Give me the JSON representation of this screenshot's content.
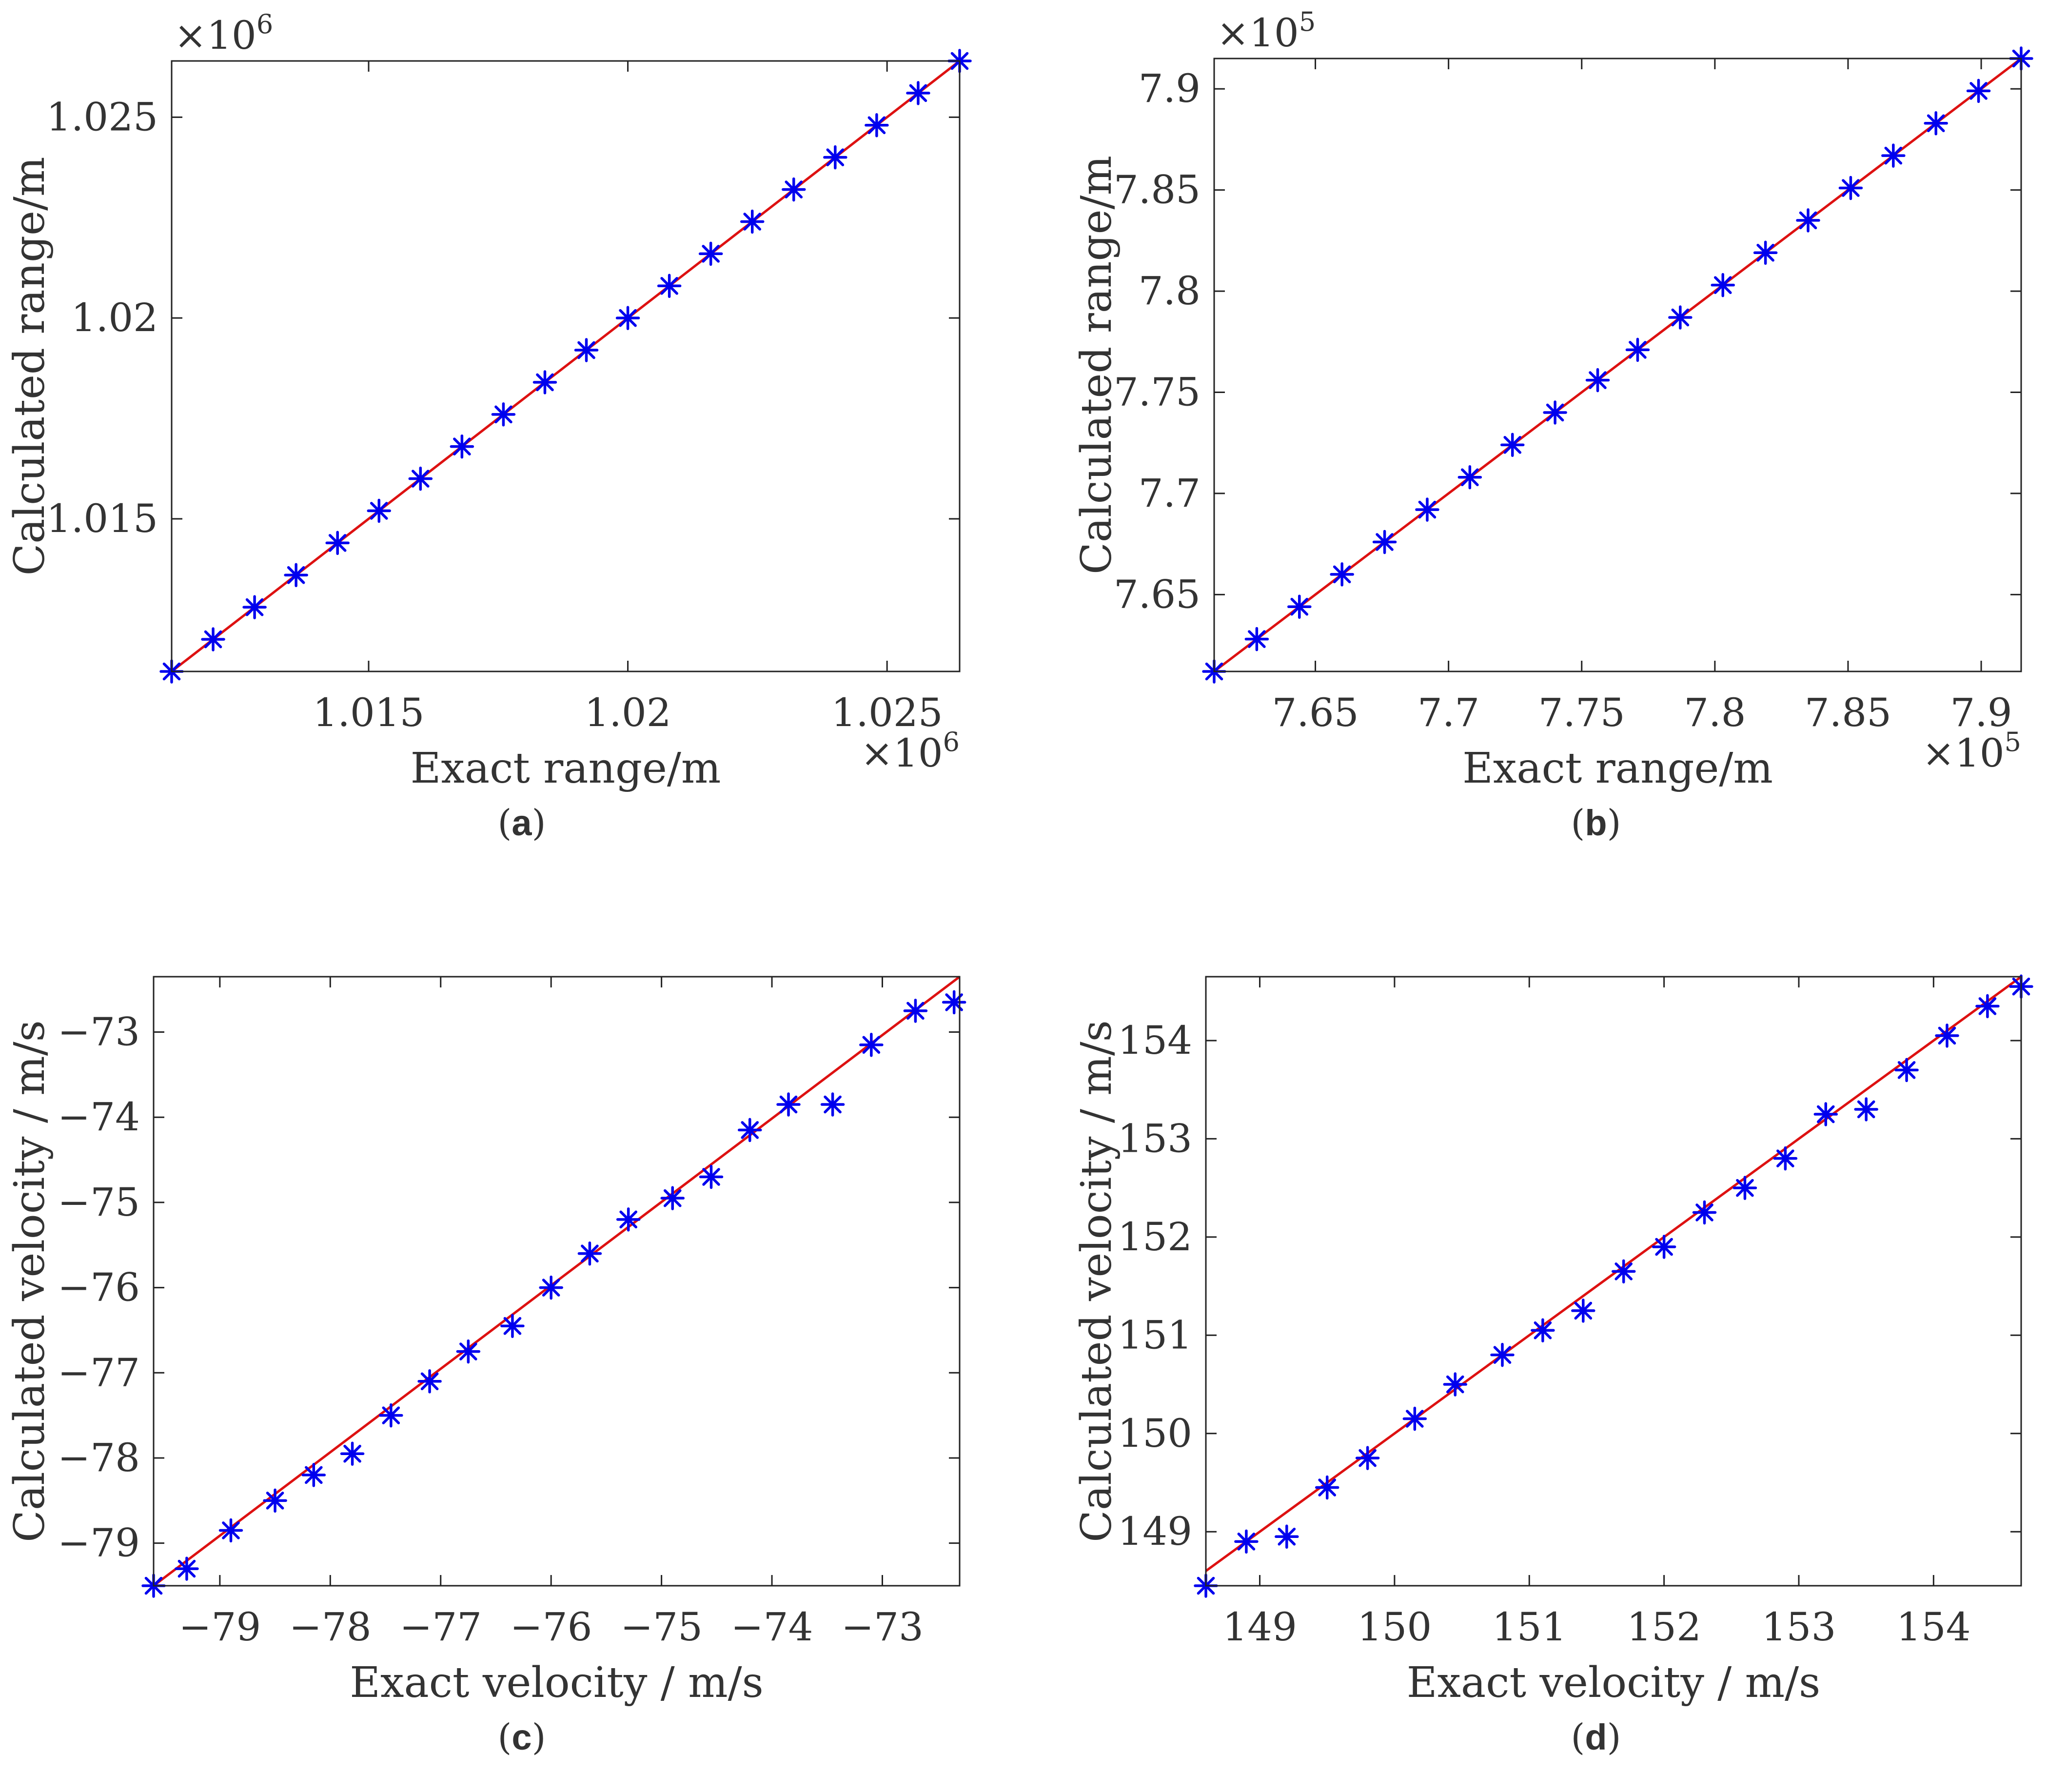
{
  "figure": {
    "panels": [
      {
        "id": "a",
        "label_open": "(",
        "label_letter": "a",
        "label_close": ")"
      },
      {
        "id": "b",
        "label_open": "(",
        "label_letter": "b",
        "label_close": ")"
      },
      {
        "id": "c",
        "label_open": "(",
        "label_letter": "c",
        "label_close": ")"
      },
      {
        "id": "d",
        "label_open": "(",
        "label_letter": "d",
        "label_close": ")"
      }
    ]
  },
  "colors": {
    "marker": "#0000ee",
    "line": "#dd1111",
    "axis": "#222222",
    "text": "#333333"
  },
  "chart_data": [
    {
      "id": "a",
      "type": "scatter",
      "title": "",
      "xlabel": "Exact range/m",
      "ylabel": "Calculated range/m",
      "x_exponent_label": "×10",
      "x_exponent_power": "6",
      "y_exponent_label": "×10",
      "y_exponent_power": "6",
      "xlim": [
        1.0112,
        1.0264
      ],
      "ylim": [
        1.0112,
        1.0264
      ],
      "xticks": [
        1.015,
        1.02,
        1.025
      ],
      "xtick_labels": [
        "1.015",
        "1.02",
        "1.025"
      ],
      "yticks": [
        1.015,
        1.02,
        1.025
      ],
      "ytick_labels": [
        "1.015",
        "1.02",
        "1.025"
      ],
      "reference_line": {
        "name": "y = x",
        "x": [
          1.0112,
          1.0264
        ],
        "y": [
          1.0112,
          1.0264
        ]
      },
      "series": [
        {
          "name": "Calculated",
          "marker": "asterisk",
          "x": [
            1.0112,
            1.012,
            1.0128,
            1.0136,
            1.0144,
            1.0152,
            1.016,
            1.0168,
            1.0176,
            1.0184,
            1.0192,
            1.02,
            1.0208,
            1.0216,
            1.0224,
            1.0232,
            1.024,
            1.0248,
            1.0256,
            1.0264
          ],
          "y": [
            1.0112,
            1.012,
            1.0128,
            1.0136,
            1.0144,
            1.0152,
            1.016,
            1.0168,
            1.0176,
            1.0184,
            1.0192,
            1.02,
            1.0208,
            1.0216,
            1.0224,
            1.0232,
            1.024,
            1.0248,
            1.0256,
            1.0264
          ]
        }
      ]
    },
    {
      "id": "b",
      "type": "scatter",
      "title": "",
      "xlabel": "Exact range/m",
      "ylabel": "Calculated range/m",
      "x_exponent_label": "×10",
      "x_exponent_power": "5",
      "y_exponent_label": "×10",
      "y_exponent_power": "5",
      "xlim": [
        7.612,
        7.915
      ],
      "ylim": [
        7.612,
        7.915
      ],
      "xticks": [
        7.65,
        7.7,
        7.75,
        7.8,
        7.85,
        7.9
      ],
      "xtick_labels": [
        "7.65",
        "7.7",
        "7.75",
        "7.8",
        "7.85",
        "7.9"
      ],
      "yticks": [
        7.65,
        7.7,
        7.75,
        7.8,
        7.85,
        7.9
      ],
      "ytick_labels": [
        "7.65",
        "7.7",
        "7.75",
        "7.8",
        "7.85",
        "7.9"
      ],
      "reference_line": {
        "name": "y = x",
        "x": [
          7.612,
          7.915
        ],
        "y": [
          7.612,
          7.915
        ]
      },
      "series": [
        {
          "name": "Calculated",
          "marker": "asterisk",
          "x": [
            7.612,
            7.628,
            7.644,
            7.66,
            7.676,
            7.692,
            7.708,
            7.724,
            7.74,
            7.756,
            7.771,
            7.787,
            7.803,
            7.819,
            7.835,
            7.851,
            7.867,
            7.883,
            7.899,
            7.915
          ],
          "y": [
            7.612,
            7.628,
            7.644,
            7.66,
            7.676,
            7.692,
            7.708,
            7.724,
            7.74,
            7.756,
            7.771,
            7.787,
            7.803,
            7.819,
            7.835,
            7.851,
            7.867,
            7.883,
            7.899,
            7.915
          ]
        }
      ]
    },
    {
      "id": "c",
      "type": "scatter",
      "title": "",
      "xlabel": "Exact velocity / m/s",
      "ylabel": "Calculated velocity / m/s",
      "xlim": [
        -79.6,
        -72.3
      ],
      "ylim": [
        -79.5,
        -72.35
      ],
      "xticks": [
        -79,
        -78,
        -77,
        -76,
        -75,
        -74,
        -73
      ],
      "xtick_labels": [
        "−79",
        "−78",
        "−77",
        "−76",
        "−75",
        "−74",
        "−73"
      ],
      "yticks": [
        -79,
        -78,
        -77,
        -76,
        -75,
        -74,
        -73
      ],
      "ytick_labels": [
        "−79",
        "−78",
        "−77",
        "−76",
        "−75",
        "−74",
        "−73"
      ],
      "reference_line": {
        "name": "y = x",
        "x": [
          -79.6,
          -72.3
        ],
        "y": [
          -79.6,
          -72.3
        ]
      },
      "series": [
        {
          "name": "Calculated",
          "marker": "asterisk",
          "x": [
            -79.6,
            -79.3,
            -78.9,
            -78.5,
            -78.15,
            -77.8,
            -77.45,
            -77.1,
            -76.75,
            -76.35,
            -76.0,
            -75.65,
            -75.3,
            -74.9,
            -74.55,
            -74.2,
            -73.85,
            -73.45,
            -73.1,
            -72.7,
            -72.35
          ],
          "y": [
            -79.5,
            -79.3,
            -78.85,
            -78.5,
            -78.2,
            -77.95,
            -77.5,
            -77.1,
            -76.75,
            -76.45,
            -76.0,
            -75.6,
            -75.2,
            -74.95,
            -74.7,
            -74.15,
            -73.85,
            -73.85,
            -73.15,
            -72.75,
            -72.65
          ]
        }
      ]
    },
    {
      "id": "d",
      "type": "scatter",
      "title": "",
      "xlabel": "Exact velocity / m/s",
      "ylabel": "Calculated velocity / m/s",
      "xlim": [
        148.6,
        154.65
      ],
      "ylim": [
        148.45,
        154.65
      ],
      "xticks": [
        149,
        150,
        151,
        152,
        153,
        154
      ],
      "xtick_labels": [
        "149",
        "150",
        "151",
        "152",
        "153",
        "154"
      ],
      "yticks": [
        149,
        150,
        151,
        152,
        153,
        154
      ],
      "ytick_labels": [
        "149",
        "150",
        "151",
        "152",
        "153",
        "154"
      ],
      "reference_line": {
        "name": "y = x",
        "x": [
          148.6,
          154.65
        ],
        "y": [
          148.6,
          154.65
        ]
      },
      "series": [
        {
          "name": "Calculated",
          "marker": "asterisk",
          "x": [
            148.6,
            148.9,
            149.2,
            149.5,
            149.8,
            150.15,
            150.45,
            150.8,
            151.1,
            151.4,
            151.7,
            152.0,
            152.3,
            152.6,
            152.9,
            153.2,
            153.5,
            153.8,
            154.1,
            154.4,
            154.65
          ],
          "y": [
            148.45,
            148.9,
            148.95,
            149.45,
            149.75,
            150.15,
            150.5,
            150.8,
            151.05,
            151.25,
            151.65,
            151.9,
            152.25,
            152.5,
            152.8,
            153.25,
            153.3,
            153.7,
            154.05,
            154.35,
            154.55
          ]
        }
      ]
    }
  ]
}
